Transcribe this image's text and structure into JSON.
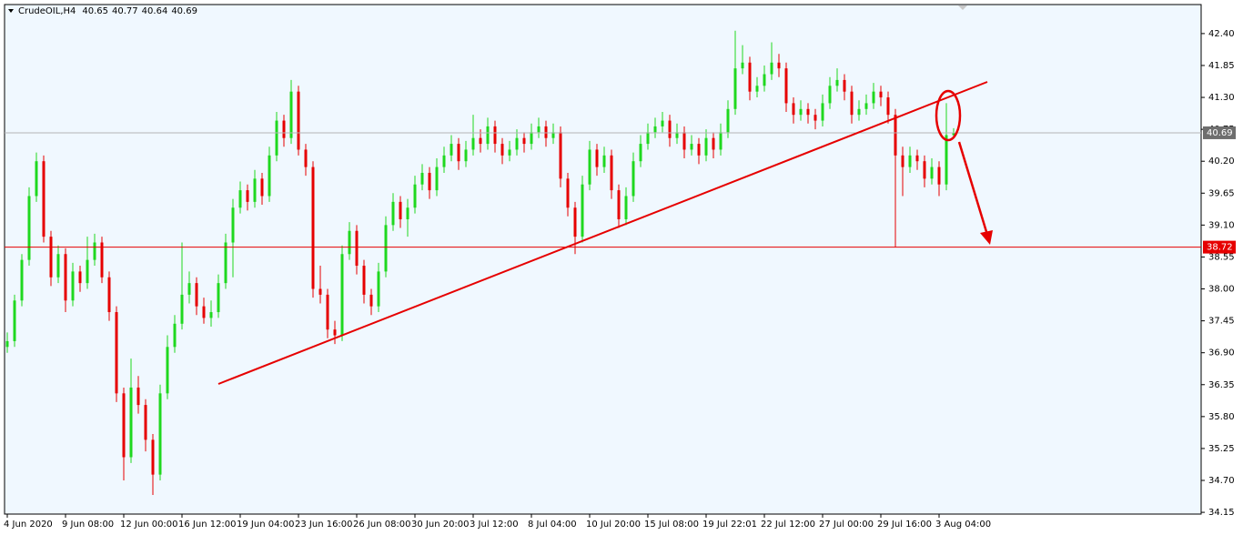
{
  "chart_data": {
    "type": "candlestick",
    "symbol": "CrudeOIL,H4",
    "up_color": "#1fd81f",
    "down_color": "#e60000",
    "open": [
      37.0,
      37.1,
      37.8,
      38.5,
      39.6,
      40.2,
      38.9,
      38.2,
      38.6,
      37.8,
      38.3,
      38.1,
      38.5,
      38.8,
      38.2,
      37.6,
      36.2,
      35.1,
      36.3,
      36.0,
      35.4,
      34.8,
      36.2,
      37.0,
      37.4,
      37.9,
      38.1,
      37.7,
      37.5,
      37.6,
      38.1,
      38.8,
      39.4,
      39.7,
      39.5,
      39.9,
      39.6,
      40.3,
      40.9,
      40.6,
      41.4,
      40.4,
      40.1,
      38.0,
      37.9,
      37.3,
      37.2,
      38.6,
      39.0,
      38.4,
      37.9,
      37.7,
      38.3,
      39.1,
      39.5,
      39.2,
      39.4,
      39.8,
      40.0,
      39.7,
      40.1,
      40.3,
      40.5,
      40.2,
      40.4,
      40.6,
      40.5,
      40.8,
      40.5,
      40.3,
      40.4,
      40.6,
      40.5,
      40.7,
      40.8,
      40.6,
      40.7,
      39.9,
      39.4,
      38.9,
      39.8,
      40.4,
      40.1,
      40.3,
      39.7,
      39.2,
      39.6,
      40.2,
      40.5,
      40.7,
      40.8,
      40.9,
      40.6,
      40.7,
      40.4,
      40.5,
      40.3,
      40.6,
      40.4,
      40.7,
      41.1,
      41.8,
      41.9,
      41.4,
      41.5,
      41.7,
      41.9,
      41.8,
      41.2,
      41.0,
      41.1,
      41.0,
      40.9,
      41.2,
      41.5,
      41.6,
      41.4,
      41.0,
      41.1,
      41.2,
      41.4,
      41.3,
      41.0,
      40.3,
      40.1,
      40.3,
      40.2,
      39.9,
      40.1,
      39.8,
      40.65
    ],
    "high": [
      37.25,
      37.9,
      38.6,
      39.75,
      40.35,
      40.3,
      39.0,
      38.75,
      38.7,
      38.45,
      38.4,
      38.9,
      38.95,
      38.9,
      38.3,
      37.7,
      36.3,
      36.8,
      36.5,
      36.1,
      35.5,
      36.35,
      37.2,
      37.55,
      38.8,
      38.3,
      38.2,
      37.85,
      37.8,
      38.25,
      38.95,
      39.55,
      39.85,
      39.8,
      40.05,
      40.0,
      40.45,
      41.05,
      41.0,
      41.6,
      41.5,
      40.5,
      40.2,
      38.4,
      38.0,
      37.45,
      38.75,
      39.15,
      39.1,
      38.5,
      38.0,
      38.45,
      39.25,
      39.65,
      39.6,
      39.55,
      39.95,
      40.15,
      40.1,
      40.25,
      40.45,
      40.65,
      40.6,
      40.55,
      41.0,
      40.75,
      40.95,
      40.9,
      40.6,
      40.55,
      40.75,
      40.7,
      40.85,
      40.95,
      40.9,
      40.85,
      40.8,
      40.0,
      39.5,
      39.95,
      40.55,
      40.5,
      40.45,
      40.4,
      39.8,
      39.75,
      40.35,
      40.65,
      40.85,
      40.95,
      41.05,
      41.0,
      40.85,
      40.8,
      40.65,
      40.6,
      40.75,
      40.7,
      40.85,
      41.25,
      42.45,
      42.2,
      42.0,
      41.65,
      41.85,
      42.25,
      42.05,
      41.9,
      41.3,
      41.25,
      41.2,
      41.1,
      41.35,
      41.65,
      41.8,
      41.7,
      41.5,
      41.25,
      41.35,
      41.55,
      41.5,
      41.4,
      41.1,
      40.45,
      40.45,
      40.4,
      40.3,
      40.25,
      40.2,
      41.2,
      40.77
    ],
    "low": [
      36.9,
      37.0,
      37.7,
      38.4,
      39.5,
      38.8,
      38.05,
      38.1,
      37.6,
      37.7,
      37.95,
      38.0,
      38.4,
      38.1,
      37.45,
      36.05,
      34.7,
      35.0,
      35.85,
      35.2,
      34.45,
      34.7,
      36.1,
      36.9,
      37.3,
      37.75,
      37.55,
      37.4,
      37.35,
      37.5,
      38.0,
      38.2,
      39.3,
      39.35,
      39.4,
      39.45,
      39.5,
      40.2,
      40.45,
      40.5,
      40.3,
      39.95,
      37.85,
      37.75,
      37.15,
      37.05,
      37.1,
      38.5,
      38.25,
      37.75,
      37.55,
      37.6,
      38.2,
      39.0,
      39.05,
      38.9,
      39.3,
      39.7,
      39.55,
      39.6,
      40.0,
      40.2,
      40.05,
      40.1,
      40.3,
      40.35,
      40.4,
      40.35,
      40.15,
      40.2,
      40.3,
      40.35,
      40.4,
      40.6,
      40.45,
      40.5,
      39.75,
      39.25,
      38.6,
      38.8,
      39.7,
      39.95,
      40.0,
      39.55,
      39.05,
      39.1,
      39.5,
      40.1,
      40.4,
      40.6,
      40.7,
      40.45,
      40.5,
      40.25,
      40.3,
      40.15,
      40.2,
      40.25,
      40.3,
      40.6,
      41.0,
      41.7,
      41.25,
      41.3,
      41.4,
      41.6,
      41.65,
      41.05,
      40.85,
      40.9,
      40.85,
      40.75,
      40.8,
      41.1,
      41.4,
      41.25,
      40.85,
      40.9,
      41.0,
      41.1,
      41.15,
      40.85,
      38.72,
      39.6,
      40.0,
      40.05,
      39.75,
      39.8,
      39.6,
      39.7,
      40.64
    ],
    "close": [
      37.1,
      37.8,
      38.5,
      39.6,
      40.2,
      38.9,
      38.2,
      38.6,
      37.8,
      38.3,
      38.1,
      38.5,
      38.8,
      38.2,
      37.6,
      36.2,
      35.1,
      36.3,
      36.0,
      35.4,
      34.8,
      36.2,
      37.0,
      37.4,
      37.9,
      38.1,
      37.7,
      37.5,
      37.6,
      38.1,
      38.8,
      39.4,
      39.7,
      39.5,
      39.9,
      39.6,
      40.3,
      40.9,
      40.6,
      41.4,
      40.4,
      40.1,
      38.0,
      37.9,
      37.3,
      37.2,
      38.6,
      39.0,
      38.4,
      37.9,
      37.7,
      38.3,
      39.1,
      39.5,
      39.2,
      39.4,
      39.8,
      40.0,
      39.7,
      40.1,
      40.3,
      40.5,
      40.2,
      40.4,
      40.6,
      40.5,
      40.8,
      40.5,
      40.3,
      40.4,
      40.6,
      40.5,
      40.7,
      40.8,
      40.6,
      40.7,
      39.9,
      39.4,
      38.9,
      39.8,
      40.4,
      40.1,
      40.3,
      39.7,
      39.2,
      39.6,
      40.2,
      40.5,
      40.7,
      40.8,
      40.9,
      40.6,
      40.7,
      40.4,
      40.5,
      40.3,
      40.6,
      40.4,
      40.7,
      41.1,
      41.8,
      41.9,
      41.4,
      41.5,
      41.7,
      41.9,
      41.8,
      41.2,
      41.0,
      41.1,
      41.0,
      40.9,
      41.2,
      41.5,
      41.6,
      41.4,
      41.0,
      41.1,
      41.2,
      41.4,
      41.3,
      41.0,
      40.3,
      40.1,
      40.3,
      40.2,
      39.9,
      40.1,
      39.8,
      40.65,
      40.69
    ],
    "level": 38.72,
    "ylim": [
      34.12,
      42.9
    ],
    "yticks": [
      {
        "value": 42.4,
        "label": "42.40"
      },
      {
        "value": 41.85,
        "label": "41.85"
      },
      {
        "value": 41.3,
        "label": "41.30"
      },
      {
        "value": 40.75,
        "label": "40.75"
      },
      {
        "value": 40.2,
        "label": "40.20"
      },
      {
        "value": 39.65,
        "label": "39.65"
      },
      {
        "value": 39.1,
        "label": "39.10"
      },
      {
        "value": 38.55,
        "label": "38.55"
      },
      {
        "value": 38,
        "label": "38.00"
      },
      {
        "value": 37.45,
        "label": "37.45"
      },
      {
        "value": 36.9,
        "label": "36.90"
      },
      {
        "value": 36.35,
        "label": "36.35"
      },
      {
        "value": 35.8,
        "label": "35.80"
      },
      {
        "value": 35.25,
        "label": "35.25"
      },
      {
        "value": 34.7,
        "label": "34.70"
      },
      {
        "value": 34.15,
        "label": "34.15"
      }
    ],
    "xticks": [
      {
        "value": 0,
        "label": "4 Jun 2020"
      },
      {
        "value": 8,
        "label": "9 Jun 08:00"
      },
      {
        "value": 16,
        "label": "12 Jun 00:00"
      },
      {
        "value": 24,
        "label": "16 Jun 12:00"
      },
      {
        "value": 32,
        "label": "19 Jun 04:00"
      },
      {
        "value": 40,
        "label": "23 Jun 16:00"
      },
      {
        "value": 48,
        "label": "26 Jun 08:00"
      },
      {
        "value": 56,
        "label": "30 Jun 20:00"
      },
      {
        "value": 64,
        "label": "3 Jul 12:00"
      },
      {
        "value": 72,
        "label": "8 Jul 04:00"
      },
      {
        "value": 80,
        "label": "10 Jul 20:00"
      },
      {
        "value": 88,
        "label": "15 Jul 08:00"
      },
      {
        "value": 96,
        "label": "19 Jul 22:01"
      },
      {
        "value": 104,
        "label": "22 Jul 12:00"
      },
      {
        "value": 112,
        "label": "27 Jul 00:00"
      },
      {
        "value": 120,
        "label": "29 Jul 16:00"
      },
      {
        "value": 128,
        "label": "3 Aug 04:00"
      }
    ]
  }
}
